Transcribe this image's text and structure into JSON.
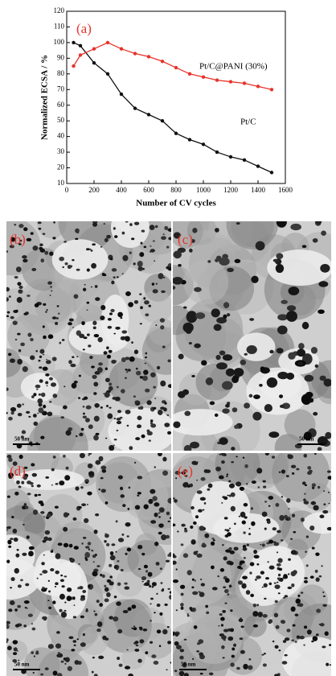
{
  "chart_data": {
    "type": "line",
    "panel_label": "(a)",
    "x_label": "Number of CV cycles",
    "y_label": "Normalized ECSA / %",
    "x": [
      50,
      100,
      200,
      300,
      400,
      500,
      600,
      700,
      800,
      900,
      1000,
      1100,
      1200,
      1300,
      1400,
      1500
    ],
    "series": [
      {
        "name": "Pt/C",
        "color": "#111111",
        "values": [
          100,
          98,
          87,
          80,
          67,
          58,
          54,
          50,
          42,
          38,
          35,
          30,
          27,
          25,
          21,
          17
        ]
      },
      {
        "name": "Pt/C@PANI (30%)",
        "color": "#e8332a",
        "values": [
          85,
          92,
          96,
          100,
          96,
          93,
          91,
          88,
          84,
          80,
          78,
          76,
          75,
          74,
          72,
          70
        ]
      }
    ],
    "xlim": [
      0,
      1600
    ],
    "xticks": [
      0,
      200,
      400,
      600,
      800,
      1000,
      1200,
      1400,
      1600
    ],
    "ylim": [
      10,
      120
    ],
    "yticks": [
      10,
      20,
      30,
      40,
      50,
      60,
      70,
      80,
      90,
      100,
      110,
      120
    ]
  },
  "panels": [
    {
      "label": "(b)",
      "scale": "50 nm"
    },
    {
      "label": "(c)",
      "scale": "50 nm"
    },
    {
      "label": "(d)",
      "scale": "50 nm"
    },
    {
      "label": "(e)",
      "scale": "50 nm"
    }
  ]
}
